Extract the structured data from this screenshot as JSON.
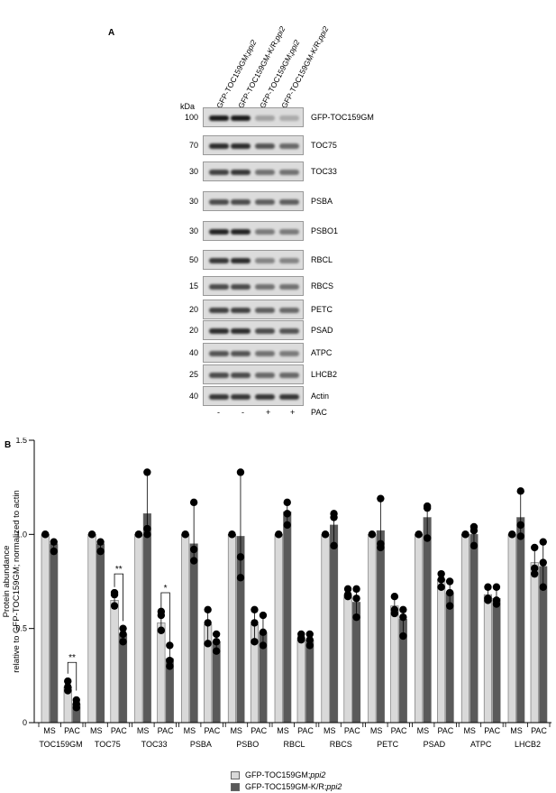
{
  "panel_a": {
    "label": "A",
    "kda_label": "kDa",
    "lanes": [
      {
        "main": "GFP-TOC159GM;",
        "italic": "ppi2"
      },
      {
        "main": "GFP-TOC159GM-K/R;",
        "italic": "ppi2"
      },
      {
        "main": "GFP-TOC159GM;",
        "italic": "ppi2"
      },
      {
        "main": "GFP-TOC159GM-K/R;",
        "italic": "ppi2"
      }
    ],
    "blots": [
      {
        "protein": "GFP-TOC159GM",
        "mw": "100",
        "intensity": [
          1,
          1,
          0.3,
          0.25
        ]
      },
      {
        "protein": "TOC75",
        "mw": "70",
        "intensity": [
          0.9,
          0.9,
          0.7,
          0.6
        ]
      },
      {
        "protein": "TOC33",
        "mw": "30",
        "intensity": [
          0.8,
          0.85,
          0.55,
          0.55
        ]
      },
      {
        "protein": "PSBA",
        "mw": "30",
        "intensity": [
          0.75,
          0.75,
          0.65,
          0.65
        ]
      },
      {
        "protein": "PSBO1",
        "mw": "30",
        "intensity": [
          0.95,
          0.95,
          0.5,
          0.5
        ]
      },
      {
        "protein": "RBCL",
        "mw": "50",
        "intensity": [
          0.85,
          0.9,
          0.45,
          0.45
        ]
      },
      {
        "protein": "RBCS",
        "mw": "15",
        "intensity": [
          0.75,
          0.75,
          0.55,
          0.55
        ]
      },
      {
        "protein": "PETC",
        "mw": "20",
        "intensity": [
          0.8,
          0.8,
          0.65,
          0.6
        ]
      },
      {
        "protein": "PSAD",
        "mw": "20",
        "intensity": [
          0.9,
          0.9,
          0.75,
          0.7
        ]
      },
      {
        "protein": "ATPC",
        "mw": "40",
        "intensity": [
          0.7,
          0.7,
          0.55,
          0.5
        ]
      },
      {
        "protein": "LHCB2",
        "mw": "25",
        "intensity": [
          0.75,
          0.75,
          0.6,
          0.6
        ]
      },
      {
        "protein": "Actin",
        "mw": "40",
        "intensity": [
          0.85,
          0.85,
          0.85,
          0.85
        ]
      }
    ],
    "pac_signs": [
      "-",
      "-",
      "+",
      "+"
    ],
    "pac_label": "PAC"
  },
  "panel_b": {
    "label": "B"
  },
  "chart_data": {
    "type": "bar",
    "ylabel_line1": "Protein abundance",
    "ylabel_line2": "relative to GFP-TOC159GM; normalized to actin",
    "ylim": [
      0,
      1.5
    ],
    "yticks": [
      "0",
      "0.5",
      "1.0",
      "1.5"
    ],
    "sub_categories": [
      "MS",
      "PAC"
    ],
    "categories": [
      "TOC159GM",
      "TOC75",
      "TOC33",
      "PSBA",
      "PSBO",
      "RBCL",
      "RBCS",
      "PETC",
      "PSAD",
      "ATPC",
      "LHCB2"
    ],
    "series": [
      {
        "name_main": "GFP-TOC159GM;",
        "name_italic": "ppi2",
        "color": "#d9d9d9",
        "ms": [
          1.0,
          1.0,
          1.0,
          1.0,
          1.0,
          1.0,
          1.0,
          1.0,
          1.0,
          1.0,
          1.0
        ],
        "pac": [
          0.19,
          0.65,
          0.53,
          0.52,
          0.52,
          0.45,
          0.68,
          0.62,
          0.76,
          0.68,
          0.85
        ]
      },
      {
        "name_main": "GFP-TOC159GM-K/R;",
        "name_italic": "ppi2",
        "color": "#5a5a5a",
        "ms": [
          0.95,
          0.95,
          1.11,
          0.95,
          0.99,
          1.12,
          1.05,
          1.02,
          1.09,
          1.0,
          1.09
        ],
        "pac": [
          0.1,
          0.47,
          0.34,
          0.43,
          0.48,
          0.44,
          0.64,
          0.55,
          0.69,
          0.66,
          0.83
        ]
      }
    ],
    "points": {
      "ms_a": [
        [
          1.0,
          1.0
        ],
        [
          1.0,
          1.0
        ],
        [
          1.0,
          1.0
        ],
        [
          1.0,
          1.0
        ],
        [
          1.0,
          1.0
        ],
        [
          1.0,
          1.0
        ],
        [
          1.0,
          1.0
        ],
        [
          1.0,
          1.0
        ],
        [
          1.0,
          1.0
        ],
        [
          1.0,
          1.0
        ],
        [
          1.0,
          1.0
        ]
      ],
      "ms_b": [
        [
          0.91,
          0.96
        ],
        [
          0.91,
          0.96
        ],
        [
          1.0,
          1.03,
          1.33
        ],
        [
          0.86,
          0.92,
          1.17
        ],
        [
          0.77,
          0.88,
          1.33
        ],
        [
          1.05,
          1.11,
          1.17
        ],
        [
          0.94,
          1.09,
          1.11
        ],
        [
          0.93,
          0.95,
          1.19
        ],
        [
          0.98,
          1.14,
          1.15
        ],
        [
          0.94,
          1.02,
          1.04
        ],
        [
          0.99,
          1.05,
          1.23
        ]
      ],
      "pac_a": [
        [
          0.17,
          0.19,
          0.22
        ],
        [
          0.62,
          0.68,
          0.69
        ],
        [
          0.49,
          0.57,
          0.59
        ],
        [
          0.42,
          0.53,
          0.6
        ],
        [
          0.43,
          0.53,
          0.6
        ],
        [
          0.44,
          0.45,
          0.47
        ],
        [
          0.67,
          0.68,
          0.71
        ],
        [
          0.58,
          0.6,
          0.67
        ],
        [
          0.72,
          0.76,
          0.79
        ],
        [
          0.65,
          0.66,
          0.72
        ],
        [
          0.79,
          0.82,
          0.93
        ]
      ],
      "pac_b": [
        [
          0.08,
          0.1,
          0.12
        ],
        [
          0.43,
          0.47,
          0.5
        ],
        [
          0.3,
          0.33,
          0.41
        ],
        [
          0.38,
          0.43,
          0.47
        ],
        [
          0.41,
          0.48,
          0.57
        ],
        [
          0.41,
          0.44,
          0.47
        ],
        [
          0.56,
          0.66,
          0.71
        ],
        [
          0.46,
          0.56,
          0.6
        ],
        [
          0.62,
          0.69,
          0.75
        ],
        [
          0.63,
          0.65,
          0.72
        ],
        [
          0.72,
          0.85,
          0.96
        ]
      ]
    },
    "significance": [
      {
        "category_index": 0,
        "label": "**"
      },
      {
        "category_index": 1,
        "label": "**"
      },
      {
        "category_index": 2,
        "label": "*"
      }
    ]
  }
}
